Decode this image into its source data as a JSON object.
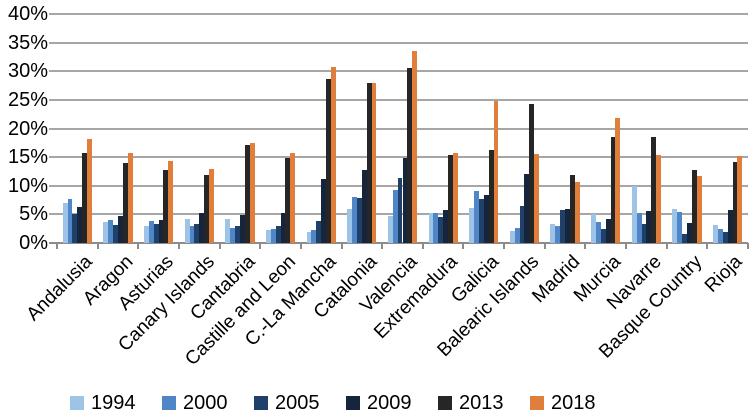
{
  "chart_data": {
    "type": "bar",
    "title": "",
    "xlabel": "",
    "ylabel": "",
    "ylim": [
      0,
      40
    ],
    "ytick_step": 5,
    "ytick_labels": [
      "0%",
      "5%",
      "10%",
      "15%",
      "20%",
      "25%",
      "30%",
      "35%",
      "40%"
    ],
    "grid": true,
    "legend_position": "bottom",
    "categories": [
      "Andalusia",
      "Aragon",
      "Asturias",
      "Canary Islands",
      "Cantabria",
      "Castille and Leon",
      "C.-La Mancha",
      "Catalonia",
      "Valencia",
      "Extremadura",
      "Galicia",
      "Balearic Islands",
      "Madrid",
      "Murcia",
      "Navarre",
      "Basque Country",
      "Rioja"
    ],
    "series": [
      {
        "name": "1994",
        "color": "#9DC3E6",
        "values": [
          6.9,
          3.7,
          3.0,
          4.2,
          4.2,
          2.3,
          2.0,
          5.9,
          4.7,
          5.2,
          6.2,
          2.1,
          3.3,
          5.0,
          10.0,
          5.9,
          3.2
        ]
      },
      {
        "name": "2000",
        "color": "#4E86C8",
        "values": [
          7.7,
          4.1,
          3.8,
          3.0,
          2.6,
          2.4,
          2.2,
          8.0,
          9.2,
          5.3,
          9.0,
          2.6,
          3.0,
          3.6,
          5.2,
          5.5,
          2.4
        ]
      },
      {
        "name": "2005",
        "color": "#1F4068",
        "values": [
          5.0,
          3.1,
          3.3,
          3.3,
          2.9,
          2.9,
          3.8,
          7.8,
          11.3,
          4.5,
          7.7,
          6.5,
          5.8,
          2.4,
          3.3,
          1.5,
          2.0
        ]
      },
      {
        "name": "2009",
        "color": "#16243C",
        "values": [
          6.3,
          4.8,
          4.1,
          5.2,
          4.9,
          5.2,
          11.1,
          12.8,
          14.8,
          5.8,
          8.4,
          12.1,
          5.9,
          4.2,
          5.6,
          3.5,
          5.8
        ]
      },
      {
        "name": "2013",
        "color": "#262626",
        "values": [
          15.8,
          14.0,
          12.7,
          11.8,
          17.1,
          14.9,
          28.7,
          27.9,
          30.6,
          15.4,
          16.3,
          24.3,
          11.8,
          18.6,
          18.5,
          12.8,
          14.1
        ]
      },
      {
        "name": "2018",
        "color": "#E07E3B",
        "values": [
          18.1,
          15.7,
          14.4,
          12.9,
          17.4,
          15.8,
          30.7,
          28.0,
          33.5,
          15.7,
          24.8,
          15.5,
          10.6,
          21.8,
          15.4,
          11.7,
          15.2
        ]
      }
    ]
  },
  "colors": {
    "background": "#FFFFFF",
    "gridline": "#A6A6A6",
    "axis_line": "#8C8C8C",
    "text": "#000000"
  }
}
